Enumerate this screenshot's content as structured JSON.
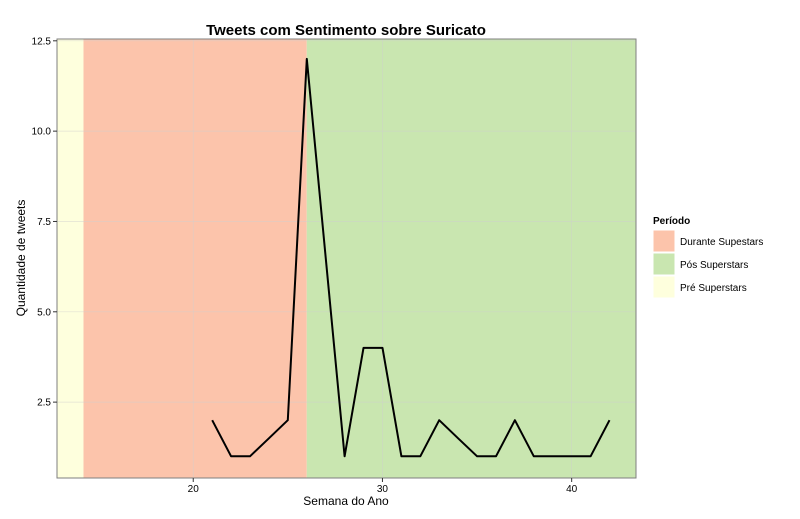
{
  "chart_data": {
    "type": "line",
    "title": "Tweets com Sentimento sobre Suricato",
    "xlabel": "Semana do Ano",
    "ylabel": "Quantidade de tweets",
    "xlim": [
      12.8,
      43.4
    ],
    "ylim": [
      0.4,
      12.55
    ],
    "x_ticks": [
      20,
      30,
      40
    ],
    "y_ticks": [
      2.5,
      5.0,
      7.5,
      10.0,
      12.5
    ],
    "x_tick_labels": [
      "20",
      "30",
      "40"
    ],
    "y_tick_labels": [
      "2.5",
      "5.0",
      "7.5",
      "10.0",
      "12.5"
    ],
    "grid": true,
    "legend_position": "right",
    "legend": {
      "title": "Período",
      "entries": [
        {
          "label": "Durante Supestars",
          "color": "#fcc4ab"
        },
        {
          "label": "Pós Superstars",
          "color": "#c9e6b0"
        },
        {
          "label": "Pré Superstars",
          "color": "#feffdd"
        }
      ]
    },
    "periods": [
      {
        "label": "Pré Superstars",
        "start": 12.8,
        "end": 14.2,
        "color": "#feffdd"
      },
      {
        "label": "Durante Supestars",
        "start": 14.2,
        "end": 26,
        "color": "#fcc4ab"
      },
      {
        "label": "Pós Superstars",
        "start": 26,
        "end": 43.4,
        "color": "#c9e6b0"
      }
    ],
    "series": [
      {
        "color": "#000000",
        "x": [
          21,
          22,
          23,
          24,
          25,
          26,
          27,
          28,
          29,
          30,
          31,
          32,
          33,
          34,
          35,
          36,
          37,
          38,
          39,
          40,
          41,
          42
        ],
        "y": [
          2,
          1,
          1,
          1.5,
          2,
          12,
          6.5,
          1,
          4,
          4,
          1,
          1,
          2,
          1.5,
          1,
          1,
          2,
          1,
          1,
          1,
          1,
          2
        ]
      }
    ]
  }
}
